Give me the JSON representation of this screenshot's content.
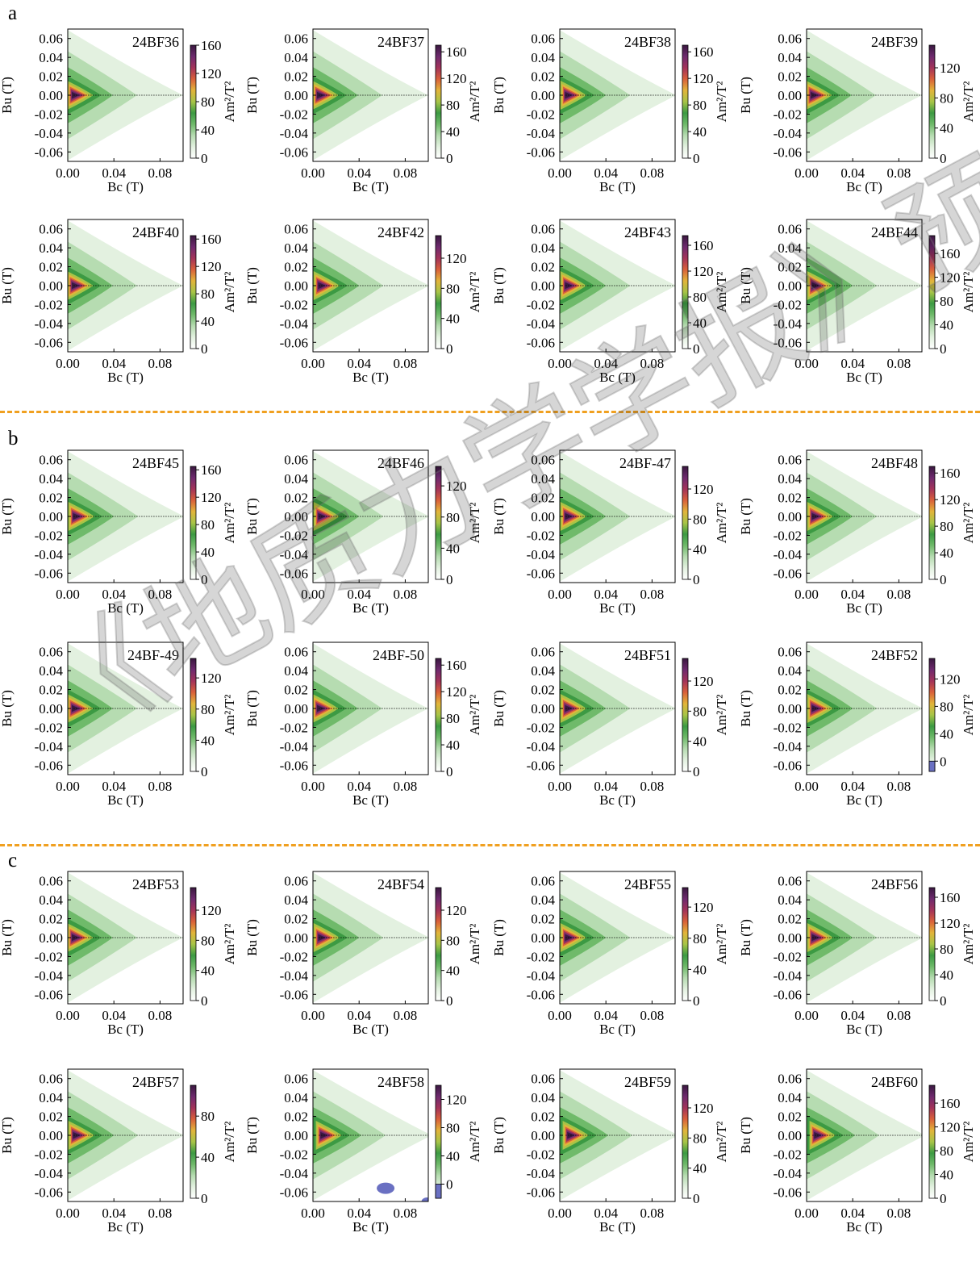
{
  "figure": {
    "groups": [
      {
        "letter": "a",
        "samples": [
          "24BF36",
          "24BF37",
          "24BF38",
          "24BF39",
          "24BF40",
          "24BF42",
          "24BF43",
          "24BF44"
        ]
      },
      {
        "letter": "b",
        "samples": [
          "24BF45",
          "24BF46",
          "24BF-47",
          "24BF48",
          "24BF-49",
          "24BF-50",
          "24BF51",
          "24BF52"
        ]
      },
      {
        "letter": "c",
        "samples": [
          "24BF53",
          "24BF54",
          "24BF55",
          "24BF56",
          "24BF57",
          "24BF58",
          "24BF59",
          "24BF60"
        ]
      }
    ],
    "divider_color": "#f0a020",
    "watermark": "《地质力学学报》预出版"
  },
  "chart_data": {
    "type": "heatmap",
    "description_type": "FORC distribution contour plots (8 per group)",
    "xlabel": "Bc (T)",
    "ylabel": "Bu (T)",
    "colorbar_label": "Am²/T²",
    "xlim": [
      0,
      0.1
    ],
    "ylim": [
      -0.07,
      0.07
    ],
    "xticks": [
      "0.00",
      "0.04",
      "0.08"
    ],
    "yticks": [
      "0.06",
      "0.04",
      "0.02",
      "0.00",
      "-0.02",
      "-0.04",
      "-0.06"
    ],
    "colormap": [
      "#ffffff",
      "#e3f1e0",
      "#b6dcb1",
      "#6fba6a",
      "#3c9a43",
      "#a8c447",
      "#e2b43a",
      "#d9603a",
      "#a3335a",
      "#6e2a6e",
      "#3a1840"
    ],
    "negative_color": "#6a70c2",
    "panels": [
      {
        "sample": "24BF36",
        "max": 160,
        "cbar_ticks": [
          0,
          40,
          80,
          120,
          160
        ],
        "peak_bc": 0.005
      },
      {
        "sample": "24BF37",
        "max": 170,
        "cbar_ticks": [
          0,
          40,
          80,
          120,
          160
        ],
        "peak_bc": 0.005
      },
      {
        "sample": "24BF38",
        "max": 170,
        "cbar_ticks": [
          0,
          40,
          80,
          120,
          160
        ],
        "peak_bc": 0.006
      },
      {
        "sample": "24BF39",
        "max": 150,
        "cbar_ticks": [
          0,
          40,
          80,
          120
        ],
        "peak_bc": 0.005
      },
      {
        "sample": "24BF40",
        "max": 165,
        "cbar_ticks": [
          0,
          40,
          80,
          120,
          160
        ],
        "peak_bc": 0.005
      },
      {
        "sample": "24BF42",
        "max": 150,
        "cbar_ticks": [
          0,
          40,
          80,
          120
        ],
        "peak_bc": 0.006
      },
      {
        "sample": "24BF43",
        "max": 175,
        "cbar_ticks": [
          0,
          40,
          80,
          120,
          160
        ],
        "peak_bc": 0.006
      },
      {
        "sample": "24BF44",
        "max": 190,
        "cbar_ticks": [
          0,
          40,
          80,
          120,
          160
        ],
        "peak_bc": 0.006
      },
      {
        "sample": "24BF45",
        "max": 165,
        "cbar_ticks": [
          0,
          40,
          80,
          120,
          160
        ],
        "peak_bc": 0.006
      },
      {
        "sample": "24BF46",
        "max": 145,
        "cbar_ticks": [
          0,
          40,
          80,
          120
        ],
        "peak_bc": 0.006
      },
      {
        "sample": "24BF-47",
        "max": 150,
        "cbar_ticks": [
          0,
          40,
          80,
          120
        ],
        "peak_bc": 0.006
      },
      {
        "sample": "24BF48",
        "max": 170,
        "cbar_ticks": [
          0,
          40,
          80,
          120,
          160
        ],
        "peak_bc": 0.006
      },
      {
        "sample": "24BF-49",
        "max": 145,
        "cbar_ticks": [
          0,
          40,
          80,
          120
        ],
        "peak_bc": 0.005
      },
      {
        "sample": "24BF-50",
        "max": 170,
        "cbar_ticks": [
          0,
          40,
          80,
          120,
          160
        ],
        "peak_bc": 0.005
      },
      {
        "sample": "24BF51",
        "max": 150,
        "cbar_ticks": [
          0,
          40,
          80,
          120
        ],
        "peak_bc": 0.006
      },
      {
        "sample": "24BF52",
        "max": 150,
        "cbar_ticks": [
          0,
          40,
          80,
          120
        ],
        "min": -15,
        "peak_bc": 0.006
      },
      {
        "sample": "24BF53",
        "max": 150,
        "cbar_ticks": [
          0,
          40,
          80,
          120
        ],
        "peak_bc": 0.005
      },
      {
        "sample": "24BF54",
        "max": 150,
        "cbar_ticks": [
          0,
          40,
          80,
          120
        ],
        "peak_bc": 0.006
      },
      {
        "sample": "24BF55",
        "max": 145,
        "cbar_ticks": [
          0,
          40,
          80,
          120
        ],
        "peak_bc": 0.006
      },
      {
        "sample": "24BF56",
        "max": 175,
        "cbar_ticks": [
          0,
          40,
          80,
          120,
          160
        ],
        "peak_bc": 0.006
      },
      {
        "sample": "24BF57",
        "max": 110,
        "cbar_ticks": [
          0,
          40,
          80
        ],
        "peak_bc": 0.006
      },
      {
        "sample": "24BF58",
        "max": 140,
        "cbar_ticks": [
          0,
          40,
          80,
          120
        ],
        "min": -20,
        "peak_bc": 0.008,
        "negative_patches": true
      },
      {
        "sample": "24BF59",
        "max": 150,
        "cbar_ticks": [
          0,
          40,
          80,
          120
        ],
        "peak_bc": 0.008
      },
      {
        "sample": "24BF60",
        "max": 190,
        "cbar_ticks": [
          0,
          40,
          80,
          120,
          160
        ],
        "peak_bc": 0.008
      }
    ]
  }
}
